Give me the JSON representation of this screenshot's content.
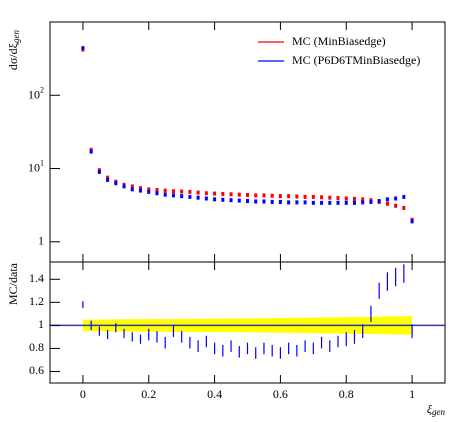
{
  "chart_data": [
    {
      "type": "scatter",
      "ylabel": "dσ/dξ",
      "ylabel_sub": "gen",
      "x": [
        0,
        0.025,
        0.05,
        0.075,
        0.1,
        0.125,
        0.15,
        0.175,
        0.2,
        0.225,
        0.25,
        0.275,
        0.3,
        0.325,
        0.35,
        0.375,
        0.4,
        0.425,
        0.45,
        0.475,
        0.5,
        0.525,
        0.55,
        0.575,
        0.6,
        0.625,
        0.65,
        0.675,
        0.7,
        0.725,
        0.75,
        0.775,
        0.8,
        0.825,
        0.85,
        0.875,
        0.9,
        0.925,
        0.95,
        0.975,
        1
      ],
      "xlim": [
        -0.1,
        1.1
      ],
      "xticks": [
        0,
        0.2,
        0.4,
        0.6,
        0.8,
        1
      ],
      "ylim": [
        0.53,
        1000
      ],
      "log_y": true,
      "yticks": [
        1,
        {
          "value": 10,
          "label": "10",
          "exponent": "1"
        },
        {
          "value": 100,
          "label": "10",
          "exponent": "2"
        }
      ],
      "legend": "top-right",
      "series": [
        {
          "name": "MC (MinBiasedge)",
          "color": "#ff0000",
          "values": [
            420,
            18,
            9.5,
            7.5,
            6.6,
            6.0,
            5.7,
            5.4,
            5.2,
            5.1,
            5.0,
            4.9,
            4.85,
            4.8,
            4.7,
            4.6,
            4.55,
            4.5,
            4.45,
            4.4,
            4.35,
            4.3,
            4.3,
            4.25,
            4.2,
            4.2,
            4.15,
            4.1,
            4.1,
            4.05,
            4.0,
            3.95,
            3.9,
            3.85,
            3.8,
            3.7,
            3.5,
            3.3,
            3.1,
            2.9,
            2.0
          ]
        },
        {
          "name": "MC (P6D6TMinBiasedge)",
          "color": "#0000ff",
          "values": [
            440,
            17,
            9.0,
            7.0,
            6.3,
            5.7,
            5.2,
            5.0,
            4.8,
            4.6,
            4.4,
            4.3,
            4.2,
            4.1,
            4.0,
            3.9,
            3.8,
            3.75,
            3.7,
            3.65,
            3.6,
            3.55,
            3.55,
            3.5,
            3.5,
            3.45,
            3.45,
            3.45,
            3.4,
            3.4,
            3.4,
            3.4,
            3.4,
            3.4,
            3.45,
            3.5,
            3.6,
            3.8,
            3.9,
            4.1,
            1.9
          ]
        }
      ]
    },
    {
      "type": "ratio",
      "ylabel": "MC/data",
      "xlabel": "ξ",
      "xlabel_sub": "gen",
      "x": [
        0,
        0.025,
        0.05,
        0.075,
        0.1,
        0.125,
        0.15,
        0.175,
        0.2,
        0.225,
        0.25,
        0.275,
        0.3,
        0.325,
        0.35,
        0.375,
        0.4,
        0.425,
        0.45,
        0.475,
        0.5,
        0.525,
        0.55,
        0.575,
        0.6,
        0.625,
        0.65,
        0.675,
        0.7,
        0.725,
        0.75,
        0.775,
        0.8,
        0.825,
        0.85,
        0.875,
        0.9,
        0.925,
        0.95,
        0.975,
        1
      ],
      "xlim": [
        -0.1,
        1.1
      ],
      "xticks": [
        0,
        0.2,
        0.4,
        0.6,
        0.8,
        1
      ],
      "ylim": [
        0.5,
        1.55
      ],
      "yticks": [
        0.6,
        0.8,
        1,
        1.2,
        1.4
      ],
      "band": {
        "color": "#ffff00",
        "x": [
          0,
          0.5,
          1
        ],
        "lower": [
          0.95,
          0.94,
          0.92
        ],
        "upper": [
          1.05,
          1.06,
          1.08
        ]
      },
      "reference": 1,
      "series": [
        {
          "color": "#0000ff",
          "values": [
            1.18,
            1.0,
            0.95,
            0.92,
            0.98,
            0.93,
            0.9,
            0.88,
            0.92,
            0.9,
            0.85,
            0.95,
            0.9,
            0.85,
            0.82,
            0.86,
            0.8,
            0.78,
            0.82,
            0.77,
            0.8,
            0.76,
            0.8,
            0.78,
            0.76,
            0.8,
            0.78,
            0.82,
            0.8,
            0.85,
            0.82,
            0.86,
            0.88,
            0.9,
            0.95,
            1.1,
            1.3,
            1.38,
            1.42,
            1.45,
            0.95
          ],
          "errors": [
            0.03,
            0.04,
            0.04,
            0.04,
            0.04,
            0.04,
            0.04,
            0.04,
            0.05,
            0.05,
            0.05,
            0.05,
            0.05,
            0.05,
            0.05,
            0.05,
            0.05,
            0.05,
            0.05,
            0.05,
            0.05,
            0.05,
            0.05,
            0.05,
            0.05,
            0.05,
            0.05,
            0.05,
            0.05,
            0.05,
            0.05,
            0.05,
            0.06,
            0.06,
            0.06,
            0.07,
            0.07,
            0.08,
            0.08,
            0.08,
            0.06
          ]
        }
      ]
    }
  ]
}
